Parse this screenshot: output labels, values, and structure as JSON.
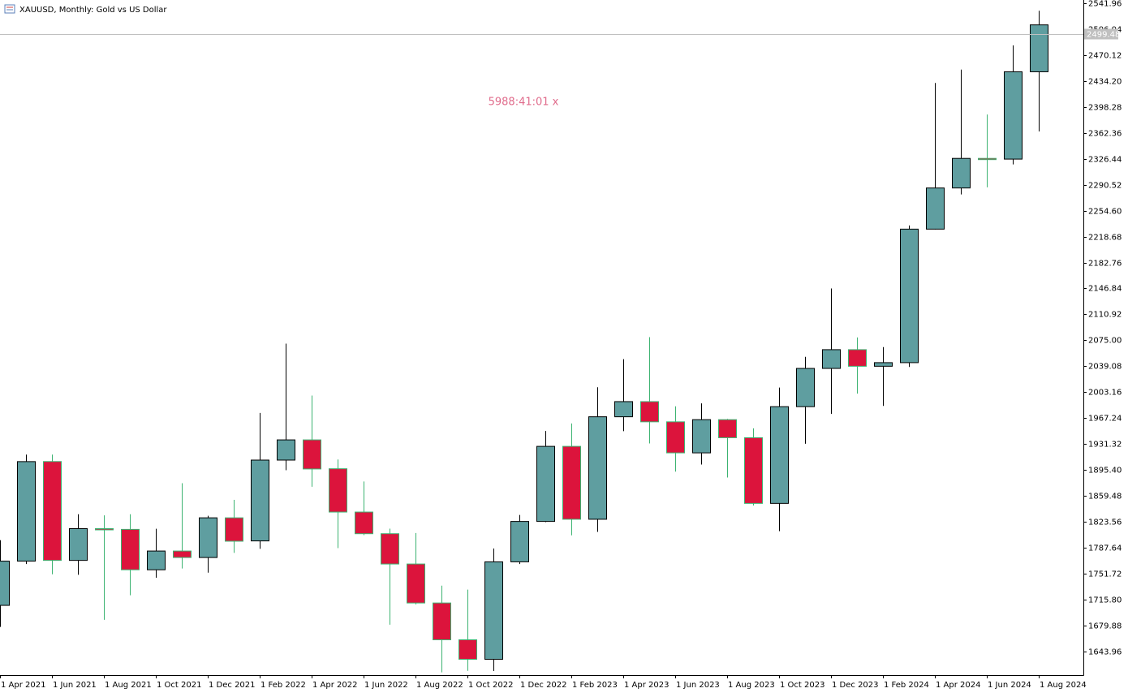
{
  "chart_data": {
    "type": "candlestick",
    "title": "XAUUSD, Monthly:  Gold vs US Dollar",
    "annotation": "5988:41:01 x",
    "categories": [
      "1 Apr 2021",
      null,
      "1 Jun 2021",
      null,
      "1 Aug 2021",
      null,
      "1 Oct 2021",
      null,
      "1 Dec 2021",
      null,
      "1 Feb 2022",
      null,
      "1 Apr 2022",
      null,
      "1 Jun 2022",
      null,
      "1 Aug 2022",
      null,
      "1 Oct 2022",
      null,
      "1 Dec 2022",
      null,
      "1 Feb 2023",
      null,
      "1 Apr 2023",
      null,
      "1 Jun 2023",
      null,
      "1 Aug 2023",
      null,
      "1 Oct 2023",
      null,
      "1 Dec 2023",
      null,
      "1 Feb 2024",
      null,
      "1 Apr 2024",
      null,
      "1 Jun 2024",
      null,
      "1 Aug 2024"
    ],
    "series": [
      {
        "open": [
          1707.7,
          1769,
          1907,
          1770,
          1814,
          1813,
          1757,
          1783,
          1774,
          1829,
          1797,
          1909,
          1937,
          1897,
          1837,
          1807,
          1765,
          1711,
          1660,
          1633,
          1768,
          1824,
          1928,
          1827,
          1969,
          1990,
          1962,
          1919,
          1965,
          1940,
          1849,
          1983,
          2036,
          2062,
          2039,
          2044,
          2229,
          2286,
          2327,
          2326,
          2447
        ],
        "high": [
          1798,
          1916.6,
          1916.6,
          1834,
          1832.4,
          1834,
          1813.8,
          1877,
          1831.8,
          1853.9,
          1974.4,
          2070.4,
          1998.4,
          1909.8,
          1879.4,
          1814,
          1807.9,
          1735,
          1729.5,
          1786.5,
          1833,
          1949.3,
          1959.8,
          2009.9,
          2048.8,
          2079.4,
          1983.5,
          1987.5,
          1966,
          1953,
          2009.5,
          2052,
          2146.8,
          2078.9,
          2065.6,
          2234,
          2431.5,
          2450,
          2387.8,
          2483.7,
          2531.6
        ],
        "low": [
          1677.9,
          1765,
          1750.8,
          1750,
          1687.7,
          1721.7,
          1746,
          1758.8,
          1753,
          1780.4,
          1786,
          1895,
          1872,
          1787,
          1805,
          1680.9,
          1709,
          1614.9,
          1617,
          1616.7,
          1765,
          1823,
          1804.8,
          1809.5,
          1949,
          1932,
          1893,
          1902.8,
          1884.8,
          1846,
          1810.5,
          1931.6,
          1973,
          2001,
          1984,
          2038,
          2228.6,
          2277,
          2286.9,
          2318.7,
          2364.4
        ],
        "close": [
          1769,
          1906.9,
          1770,
          1814,
          1813.5,
          1757,
          1783,
          1774,
          1829,
          1796.6,
          1909,
          1937,
          1896.7,
          1837,
          1807,
          1765,
          1711,
          1660,
          1633,
          1768,
          1824,
          1928,
          1827,
          1969,
          1990,
          1962,
          1919,
          1965,
          1940,
          1849,
          1983,
          2036,
          2062,
          2039,
          2044,
          2229,
          2286,
          2327,
          2326.6,
          2447,
          2512
        ]
      }
    ],
    "up_color": "#5f9ea0",
    "down_color": "#dc143c",
    "up_line_color": "#000000",
    "down_line_color": "#3cb371",
    "current_price": 2499.48,
    "ylim": [
      1611.08,
      2546.46
    ],
    "yticks": [
      2541.96,
      2506.04,
      2470.12,
      {
        "value": 2434.2,
        "label": "2434.20"
      },
      2398.28,
      2362.36,
      2326.44,
      2290.52,
      {
        "value": 2254.6,
        "label": "2254.60"
      },
      2218.68,
      2182.76,
      2146.84,
      2110.92,
      {
        "value": 2075,
        "label": "2075.00"
      },
      2039.08,
      2003.16,
      1967.24,
      1931.32,
      {
        "value": 1895.4,
        "label": "1895.40"
      },
      1859.48,
      1823.56,
      1787.64,
      1751.72,
      {
        "value": 1715.8,
        "label": "1715.80"
      },
      1679.88,
      1643.96
    ]
  }
}
